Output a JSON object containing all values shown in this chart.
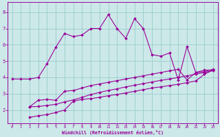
{
  "bg_color": "#cce8e8",
  "line_color": "#990099",
  "grid_color": "#99cccc",
  "xlabel": "Windchill (Refroidissement éolien,°C)",
  "xlim": [
    -0.5,
    23.5
  ],
  "ylim": [
    1.2,
    8.6
  ],
  "xticks": [
    0,
    1,
    2,
    3,
    4,
    5,
    6,
    7,
    8,
    9,
    10,
    11,
    12,
    13,
    14,
    15,
    16,
    17,
    18,
    19,
    20,
    21,
    22,
    23
  ],
  "yticks": [
    2,
    3,
    4,
    5,
    6,
    7,
    8
  ],
  "curve1_x": [
    0,
    1,
    2,
    3,
    4,
    5,
    6,
    7,
    8,
    9,
    10,
    11,
    12,
    13,
    14,
    15,
    16,
    17,
    18,
    19,
    20,
    21,
    22,
    23
  ],
  "curve1_y": [
    3.9,
    3.9,
    3.9,
    4.0,
    4.85,
    5.85,
    6.7,
    6.5,
    6.6,
    7.0,
    7.0,
    7.85,
    7.0,
    6.4,
    7.6,
    7.0,
    5.4,
    5.3,
    5.5,
    3.85,
    5.9,
    4.3,
    4.45,
    4.45
  ],
  "curve2_x": [
    2,
    3,
    4,
    5,
    6,
    7,
    8,
    9,
    10,
    11,
    12,
    13,
    14,
    15,
    16,
    17,
    18,
    19,
    20,
    21,
    22,
    23
  ],
  "curve2_y": [
    2.2,
    2.6,
    2.65,
    2.6,
    3.15,
    3.2,
    3.35,
    3.5,
    3.6,
    3.7,
    3.8,
    3.9,
    4.0,
    4.1,
    4.2,
    4.3,
    4.4,
    4.5,
    3.85,
    4.3,
    4.35,
    4.5
  ],
  "curve3_x": [
    2,
    3,
    4,
    5,
    6,
    7,
    8,
    9,
    10,
    11,
    12,
    13,
    14,
    15,
    16,
    17,
    18,
    19,
    20,
    21,
    22,
    23
  ],
  "curve3_y": [
    1.55,
    1.65,
    1.72,
    1.85,
    2.0,
    2.55,
    2.65,
    2.7,
    2.78,
    2.88,
    2.95,
    3.05,
    3.15,
    3.25,
    3.35,
    3.42,
    3.5,
    3.58,
    3.68,
    3.78,
    4.2,
    4.45
  ],
  "curve4_x": [
    2,
    3,
    4,
    5,
    6,
    7,
    8,
    9,
    10,
    11,
    12,
    13,
    14,
    15,
    16,
    17,
    18,
    19,
    20,
    21,
    22,
    23
  ],
  "curve4_y": [
    2.2,
    2.22,
    2.28,
    2.35,
    2.5,
    2.62,
    2.78,
    2.95,
    3.08,
    3.2,
    3.3,
    3.42,
    3.52,
    3.62,
    3.72,
    3.82,
    3.9,
    4.0,
    4.1,
    4.2,
    4.3,
    4.42
  ]
}
